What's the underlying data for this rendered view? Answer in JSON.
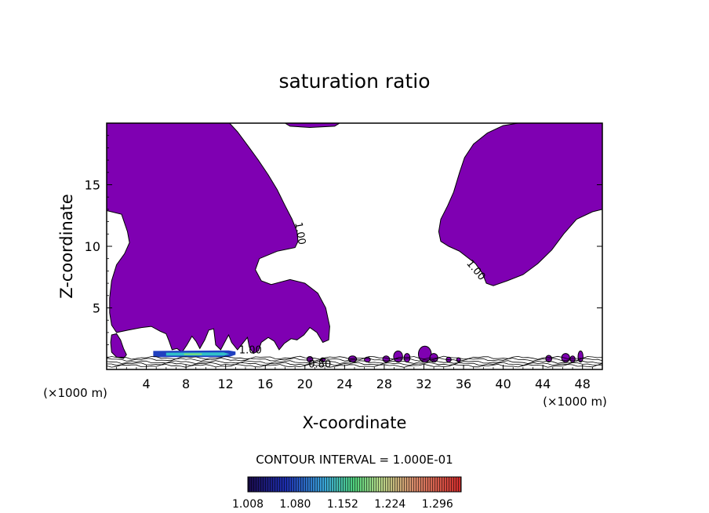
{
  "chart_data": {
    "type": "contour",
    "title": "saturation ratio",
    "xlabel": "X-coordinate",
    "ylabel": "Z-coordinate",
    "x_unit": "(×1000 m)",
    "x_unit_right": "(×1000 m)",
    "xlim": [
      0,
      50
    ],
    "ylim": [
      0,
      20
    ],
    "x_ticks": [
      4,
      8,
      12,
      16,
      20,
      24,
      28,
      32,
      36,
      40,
      44,
      48
    ],
    "x_tick_labels": [
      "4",
      "8",
      "12",
      "16",
      "20",
      "24",
      "28",
      "32",
      "36",
      "40",
      "44",
      "48"
    ],
    "y_ticks": [
      5,
      10,
      15
    ],
    "y_tick_labels": [
      "5",
      "10",
      "15"
    ],
    "contour_labels": [
      {
        "text": "1.00",
        "x": 19.2,
        "z": 11.0,
        "angle": 80
      },
      {
        "text": "1.00",
        "x": 37.0,
        "z": 7.9,
        "angle": 50
      },
      {
        "text": "1.00",
        "x": 14.5,
        "z": 1.3,
        "angle": 0
      },
      {
        "text": "0.80",
        "x": 21.5,
        "z": 0.15,
        "angle": 0
      }
    ],
    "contour_interval_label": "CONTOUR INTERVAL = 1.000E-01",
    "colorbar": {
      "labels": [
        "1.008",
        "1.080",
        "1.152",
        "1.224",
        "1.296"
      ],
      "min": 1.008,
      "max": 1.332
    },
    "colors": {
      "supersaturated_fill": "#7f00b2",
      "contour_line": "#000000"
    }
  }
}
